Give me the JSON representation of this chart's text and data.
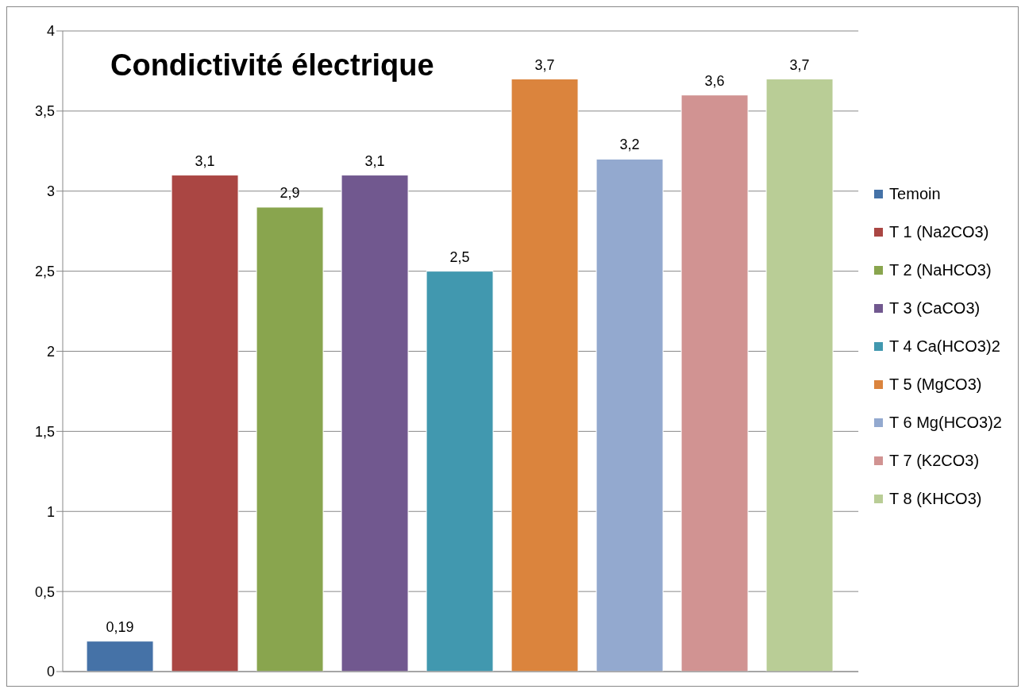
{
  "chart_data": {
    "type": "bar",
    "title": "Condictivité électrique",
    "categories": [
      null
    ],
    "series": [
      {
        "name": "Temoin",
        "color": "#4572a7",
        "values": [
          0.19
        ],
        "value_labels": [
          "0,19"
        ]
      },
      {
        "name": "T 1 (Na2CO3)",
        "color": "#aa4643",
        "values": [
          3.1
        ],
        "value_labels": [
          "3,1"
        ]
      },
      {
        "name": "T 2 (NaHCO3)",
        "color": "#89a54e",
        "values": [
          2.9
        ],
        "value_labels": [
          "2,9"
        ]
      },
      {
        "name": "T 3 (CaCO3)",
        "color": "#71588f",
        "values": [
          3.1
        ],
        "value_labels": [
          "3,1"
        ]
      },
      {
        "name": "T 4 Ca(HCO3)2",
        "color": "#4198af",
        "values": [
          2.5
        ],
        "value_labels": [
          "2,5"
        ]
      },
      {
        "name": "T 5 (MgCO3)",
        "color": "#db843d",
        "values": [
          3.7
        ],
        "value_labels": [
          "3,7"
        ]
      },
      {
        "name": "T 6 Mg(HCO3)2",
        "color": "#93a9cf",
        "values": [
          3.2
        ],
        "value_labels": [
          "3,2"
        ]
      },
      {
        "name": "T 7 (K2CO3)",
        "color": "#d19392",
        "values": [
          3.6
        ],
        "value_labels": [
          "3,6"
        ]
      },
      {
        "name": "T 8 (KHCO3)",
        "color": "#b9cd96",
        "values": [
          3.7
        ],
        "value_labels": [
          "3,7"
        ]
      }
    ],
    "ylim": [
      0,
      4
    ],
    "yticks": [
      0,
      {
        "value": 0.5,
        "label": "0,5"
      },
      1,
      {
        "value": 1.5,
        "label": "1,5"
      },
      2,
      {
        "value": 2.5,
        "label": "2,5"
      },
      3,
      {
        "value": 3.5,
        "label": "3,5"
      },
      4
    ],
    "grid": "y",
    "legend": "right"
  }
}
